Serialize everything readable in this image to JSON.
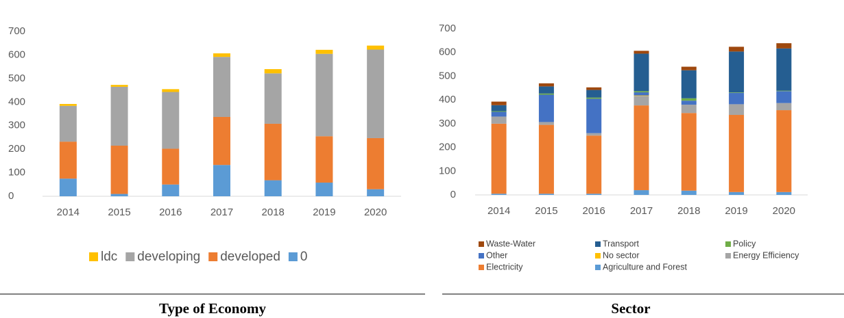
{
  "chart_data": [
    {
      "type": "bar",
      "stacked": true,
      "title": "Type of Economy",
      "categories": [
        "2014",
        "2015",
        "2016",
        "2017",
        "2018",
        "2019",
        "2020"
      ],
      "series": [
        {
          "name": "0",
          "color": "#5b9bd5",
          "values": [
            75,
            10,
            50,
            133,
            68,
            58,
            30
          ]
        },
        {
          "name": "developed",
          "color": "#ed7d31",
          "values": [
            157,
            205,
            152,
            204,
            240,
            197,
            217
          ]
        },
        {
          "name": "developing",
          "color": "#a5a5a5",
          "values": [
            152,
            250,
            241,
            255,
            214,
            350,
            376
          ]
        },
        {
          "name": "ldc",
          "color": "#ffc000",
          "values": [
            8,
            8,
            12,
            15,
            18,
            17,
            17
          ]
        }
      ],
      "ylim": [
        0,
        700
      ],
      "yticks": [
        0,
        100,
        200,
        300,
        400,
        500,
        600,
        700
      ],
      "grid": false
    },
    {
      "type": "bar",
      "stacked": true,
      "title": "Sector",
      "categories": [
        "2014",
        "2015",
        "2016",
        "2017",
        "2018",
        "2019",
        "2020"
      ],
      "series": [
        {
          "name": "Agriculture and Forest",
          "color": "#5b9bd5",
          "values": [
            5,
            5,
            5,
            20,
            18,
            12,
            12
          ]
        },
        {
          "name": "Electricity",
          "color": "#ed7d31",
          "values": [
            295,
            290,
            245,
            357,
            327,
            325,
            345
          ]
        },
        {
          "name": "Energy Efficiency",
          "color": "#a5a5a5",
          "values": [
            30,
            12,
            10,
            40,
            35,
            45,
            30
          ]
        },
        {
          "name": "No sector",
          "color": "#ffc000",
          "values": [
            0,
            0,
            0,
            2,
            0,
            0,
            0
          ]
        },
        {
          "name": "Other",
          "color": "#4472c4",
          "values": [
            20,
            115,
            145,
            13,
            17,
            48,
            50
          ]
        },
        {
          "name": "Policy",
          "color": "#70ad47",
          "values": [
            3,
            5,
            5,
            5,
            10,
            2,
            2
          ]
        },
        {
          "name": "Transport",
          "color": "#255e91",
          "values": [
            25,
            30,
            32,
            158,
            118,
            172,
            178
          ]
        },
        {
          "name": "Waste-Water",
          "color": "#9e480e",
          "values": [
            15,
            13,
            11,
            12,
            15,
            20,
            22
          ]
        }
      ],
      "ylim": [
        0,
        700
      ],
      "yticks": [
        0,
        100,
        200,
        300,
        400,
        500,
        600,
        700
      ],
      "grid": false
    }
  ]
}
